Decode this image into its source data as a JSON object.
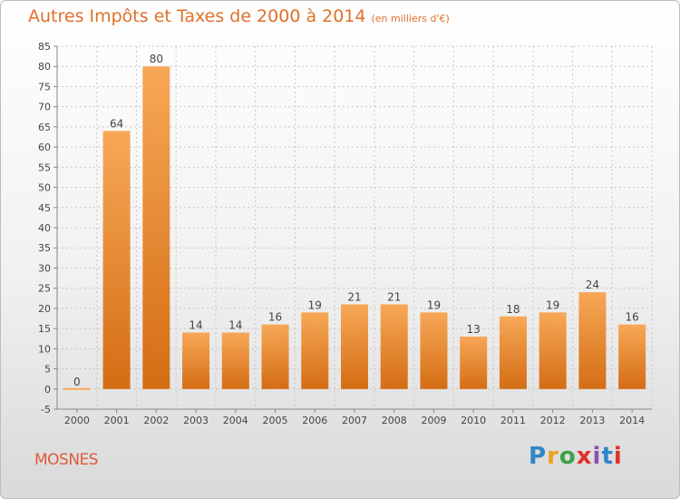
{
  "chart_data": {
    "type": "bar",
    "title": "Autres Impôts et Taxes de 2000 à 2014",
    "subtitle": "(en milliers d'€)",
    "xlabel": "",
    "ylabel": "",
    "categories": [
      "2000",
      "2001",
      "2002",
      "2003",
      "2004",
      "2005",
      "2006",
      "2007",
      "2008",
      "2009",
      "2010",
      "2011",
      "2012",
      "2013",
      "2014"
    ],
    "values": [
      0,
      64,
      80,
      14,
      14,
      16,
      19,
      21,
      21,
      19,
      13,
      18,
      19,
      24,
      16
    ],
    "data_labels": [
      "0",
      "64",
      "80",
      "14",
      "14",
      "16",
      "19",
      "21",
      "21",
      "19",
      "13",
      "18",
      "19",
      "24",
      "16"
    ],
    "ylim": [
      -5,
      85
    ],
    "yticks": [
      -5,
      0,
      5,
      10,
      15,
      20,
      25,
      30,
      35,
      40,
      45,
      50,
      55,
      60,
      65,
      70,
      75,
      80,
      85
    ],
    "grid": true,
    "bar_color_top": "#f7a857",
    "bar_color_bottom": "#d46d14"
  },
  "footer": {
    "town": "MOSNES",
    "logo_text": "Proxiti",
    "logo_colors": [
      "#2f86c8",
      "#f0a020",
      "#3aa24a",
      "#e0302a",
      "#8a4fb0",
      "#2f86c8",
      "#e0302a"
    ]
  },
  "colors": {
    "title": "#e0702a",
    "town": "#e05a3a",
    "grid": "#c8c8c8"
  }
}
